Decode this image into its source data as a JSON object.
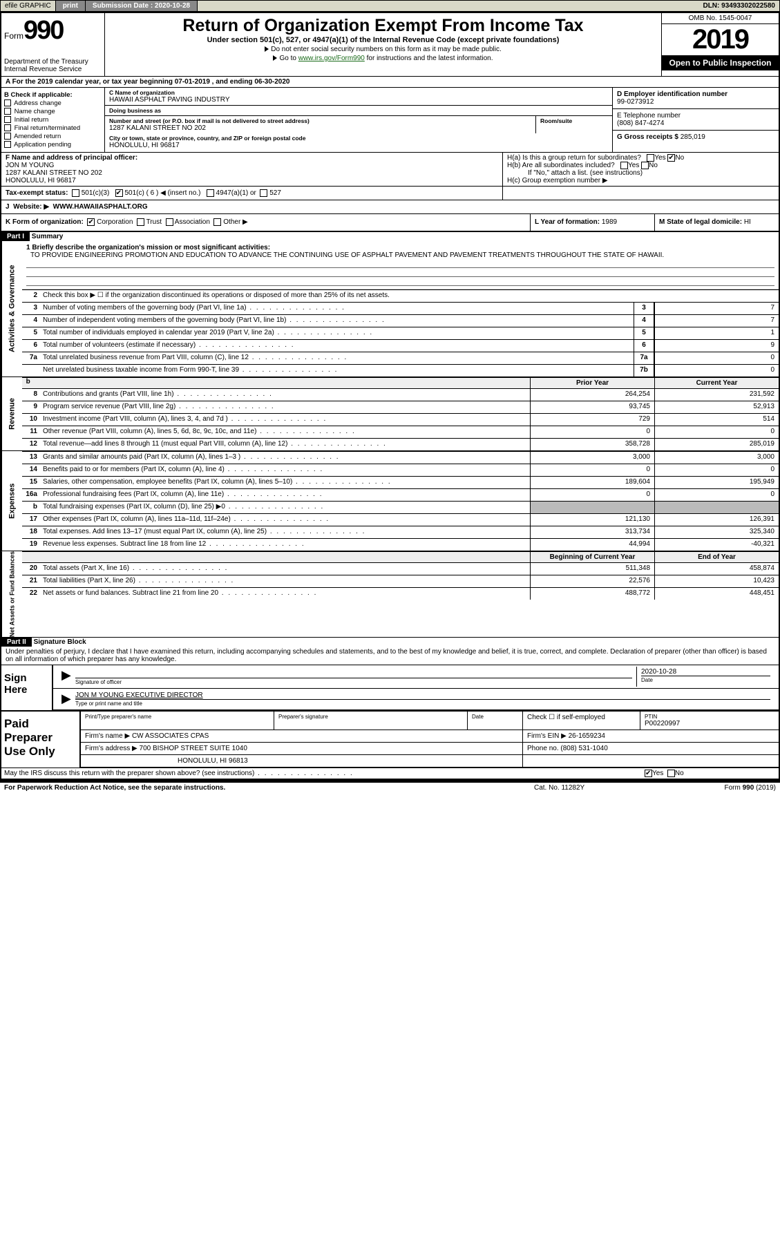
{
  "topbar": {
    "efile": "efile GRAPHIC",
    "print": "print",
    "subdate_label": "Submission Date : 2020-10-28",
    "dln": "DLN: 93493302022580"
  },
  "hdr": {
    "formword": "Form",
    "formnum": "990",
    "dept": "Department of the Treasury\nInternal Revenue Service",
    "title": "Return of Organization Exempt From Income Tax",
    "sub": "Under section 501(c), 527, or 4947(a)(1) of the Internal Revenue Code (except private foundations)",
    "note1": "Do not enter social security numbers on this form as it may be made public.",
    "note2_pre": "Go to ",
    "note2_link": "www.irs.gov/Form990",
    "note2_post": " for instructions and the latest information.",
    "omb": "OMB No. 1545-0047",
    "year": "2019",
    "opentopublic": "Open to Public Inspection"
  },
  "rowA": "A For the 2019 calendar year, or tax year beginning 07-01-2019    , and ending 06-30-2020",
  "colB": {
    "title": "B Check if applicable:",
    "items": [
      "Address change",
      "Name change",
      "Initial return",
      "Final return/terminated",
      "Amended return",
      "Application pending"
    ]
  },
  "colC": {
    "name_lbl": "C Name of organization",
    "name": "HAWAII ASPHALT PAVING INDUSTRY",
    "dba_lbl": "Doing business as",
    "dba": "",
    "addr_lbl": "Number and street (or P.O. box if mail is not delivered to street address)",
    "room_lbl": "Room/suite",
    "addr": "1287 KALANI STREET NO 202",
    "city_lbl": "City or town, state or province, country, and ZIP or foreign postal code",
    "city": "HONOLULU, HI  96817"
  },
  "colD": {
    "ein_lbl": "D Employer identification number",
    "ein": "99-0273912",
    "tel_lbl": "E Telephone number",
    "tel": "(808) 847-4274",
    "gross_lbl": "G Gross receipts $",
    "gross": "285,019"
  },
  "rowF": {
    "lbl": "F  Name and address of principal officer:",
    "name": "JON M YOUNG",
    "addr1": "1287 KALANI STREET NO 202",
    "addr2": "HONOLULU, HI  96817"
  },
  "rowH": {
    "ha": "H(a)  Is this a group return for subordinates?",
    "hb": "H(b)  Are all subordinates included?",
    "hnote": "If \"No,\" attach a list. (see instructions)",
    "hc": "H(c)  Group exemption number"
  },
  "rowI": {
    "lbl": "Tax-exempt status:",
    "opts": [
      "501(c)(3)",
      "501(c) ( 6 ) ◀ (insert no.)",
      "4947(a)(1) or",
      "527"
    ]
  },
  "rowJ": {
    "lbl": "Website:",
    "val": "WWW.HAWAIIASPHALT.ORG"
  },
  "rowK": {
    "k1_lbl": "K Form of organization:",
    "k1_opts": [
      "Corporation",
      "Trust",
      "Association",
      "Other"
    ],
    "k2_lbl": "L Year of formation:",
    "k2_val": "1989",
    "k3_lbl": "M State of legal domicile:",
    "k3_val": "HI"
  },
  "part1": {
    "title": "Part I",
    "subtitle": "Summary",
    "side_ag": "Activities & Governance",
    "side_rev": "Revenue",
    "side_exp": "Expenses",
    "side_na": "Net Assets or Fund Balances",
    "q1": "1  Briefly describe the organization's mission or most significant activities:",
    "mission": "TO PROVIDE ENGINEERING PROMOTION AND EDUCATION TO ADVANCE THE CONTINUING USE OF ASPHALT PAVEMENT AND PAVEMENT TREATMENTS THROUGHOUT THE STATE OF HAWAII.",
    "q2": "Check this box ▶ ☐  if the organization discontinued its operations or disposed of more than 25% of its net assets.",
    "lines_ag": [
      {
        "n": "3",
        "t": "Number of voting members of the governing body (Part VI, line 1a)",
        "b": "3",
        "v": "7"
      },
      {
        "n": "4",
        "t": "Number of independent voting members of the governing body (Part VI, line 1b)",
        "b": "4",
        "v": "7"
      },
      {
        "n": "5",
        "t": "Total number of individuals employed in calendar year 2019 (Part V, line 2a)",
        "b": "5",
        "v": "1"
      },
      {
        "n": "6",
        "t": "Total number of volunteers (estimate if necessary)",
        "b": "6",
        "v": "9"
      },
      {
        "n": "7a",
        "t": "Total unrelated business revenue from Part VIII, column (C), line 12",
        "b": "7a",
        "v": "0"
      },
      {
        "n": "",
        "t": "Net unrelated business taxable income from Form 990-T, line 39",
        "b": "7b",
        "v": "0"
      }
    ],
    "hdr_prior": "Prior Year",
    "hdr_current": "Current Year",
    "lines_rev": [
      {
        "n": "8",
        "t": "Contributions and grants (Part VIII, line 1h)",
        "p": "264,254",
        "c": "231,592"
      },
      {
        "n": "9",
        "t": "Program service revenue (Part VIII, line 2g)",
        "p": "93,745",
        "c": "52,913"
      },
      {
        "n": "10",
        "t": "Investment income (Part VIII, column (A), lines 3, 4, and 7d )",
        "p": "729",
        "c": "514"
      },
      {
        "n": "11",
        "t": "Other revenue (Part VIII, column (A), lines 5, 6d, 8c, 9c, 10c, and 11e)",
        "p": "0",
        "c": "0"
      },
      {
        "n": "12",
        "t": "Total revenue—add lines 8 through 11 (must equal Part VIII, column (A), line 12)",
        "p": "358,728",
        "c": "285,019"
      }
    ],
    "lines_exp": [
      {
        "n": "13",
        "t": "Grants and similar amounts paid (Part IX, column (A), lines 1–3 )",
        "p": "3,000",
        "c": "3,000"
      },
      {
        "n": "14",
        "t": "Benefits paid to or for members (Part IX, column (A), line 4)",
        "p": "0",
        "c": "0"
      },
      {
        "n": "15",
        "t": "Salaries, other compensation, employee benefits (Part IX, column (A), lines 5–10)",
        "p": "189,604",
        "c": "195,949"
      },
      {
        "n": "16a",
        "t": "Professional fundraising fees (Part IX, column (A), line 11e)",
        "p": "0",
        "c": "0"
      },
      {
        "n": "b",
        "t": "Total fundraising expenses (Part IX, column (D), line 25) ▶0",
        "p": "",
        "c": "",
        "grey": true
      },
      {
        "n": "17",
        "t": "Other expenses (Part IX, column (A), lines 11a–11d, 11f–24e)",
        "p": "121,130",
        "c": "126,391"
      },
      {
        "n": "18",
        "t": "Total expenses. Add lines 13–17 (must equal Part IX, column (A), line 25)",
        "p": "313,734",
        "c": "325,340"
      },
      {
        "n": "19",
        "t": "Revenue less expenses. Subtract line 18 from line 12",
        "p": "44,994",
        "c": "-40,321"
      }
    ],
    "hdr_boy": "Beginning of Current Year",
    "hdr_eoy": "End of Year",
    "lines_na": [
      {
        "n": "20",
        "t": "Total assets (Part X, line 16)",
        "p": "511,348",
        "c": "458,874"
      },
      {
        "n": "21",
        "t": "Total liabilities (Part X, line 26)",
        "p": "22,576",
        "c": "10,423"
      },
      {
        "n": "22",
        "t": "Net assets or fund balances. Subtract line 21 from line 20",
        "p": "488,772",
        "c": "448,451"
      }
    ]
  },
  "part2": {
    "title": "Part II",
    "subtitle": "Signature Block",
    "decl": "Under penalties of perjury, I declare that I have examined this return, including accompanying schedules and statements, and to the best of my knowledge and belief, it is true, correct, and complete. Declaration of preparer (other than officer) is based on all information of which preparer has any knowledge."
  },
  "sign": {
    "label": "Sign Here",
    "sig_lbl": "Signature of officer",
    "date": "2020-10-28",
    "date_lbl": "Date",
    "name": "JON M YOUNG  EXECUTIVE DIRECTOR",
    "name_lbl": "Type or print name and title"
  },
  "prep": {
    "label": "Paid Preparer Use Only",
    "c1_lbl": "Print/Type preparer's name",
    "c1": "",
    "c2_lbl": "Preparer's signature",
    "c2": "",
    "c3_lbl": "Date",
    "c3": "",
    "c4_lbl": "Check ☐ if self-employed",
    "c5_lbl": "PTIN",
    "c5": "P00220997",
    "firm_lbl": "Firm's name   ▶",
    "firm": "CW ASSOCIATES CPAS",
    "ein_lbl": "Firm's EIN ▶",
    "ein": "26-1659234",
    "addr_lbl": "Firm's address ▶",
    "addr": "700 BISHOP STREET SUITE 1040",
    "addr2": "HONOLULU, HI  96813",
    "phone_lbl": "Phone no.",
    "phone": "(808) 531-1040",
    "discuss": "May the IRS discuss this return with the preparer shown above? (see instructions)"
  },
  "foot": {
    "left": "For Paperwork Reduction Act Notice, see the separate instructions.",
    "mid": "Cat. No. 11282Y",
    "right": "Form 990 (2019)"
  }
}
